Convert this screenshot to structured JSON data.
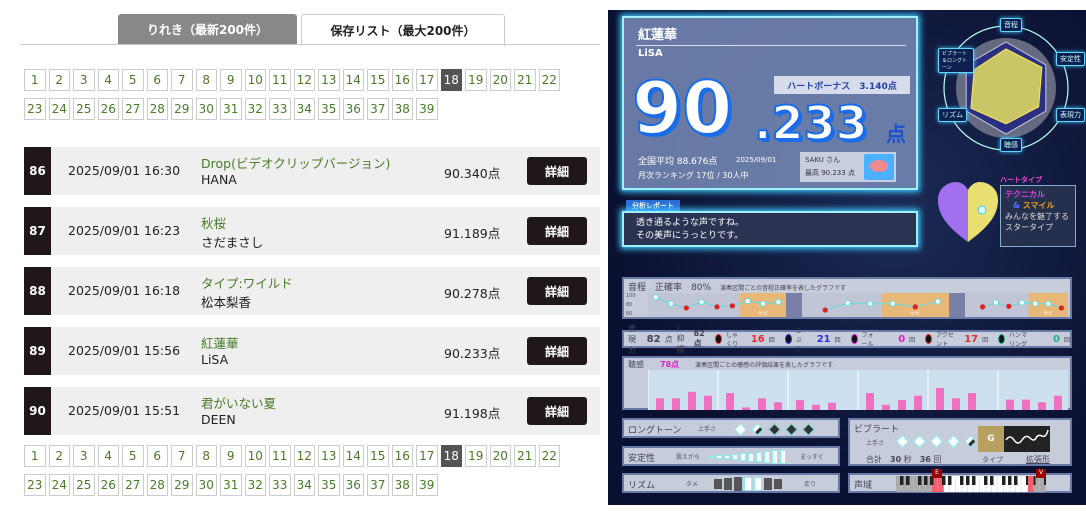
{
  "tabs": [
    {
      "label": "りれき（最新200件）",
      "active": false
    },
    {
      "label": "保存リスト（最大200件）",
      "active": true
    }
  ],
  "pagination": {
    "pages": [
      "1",
      "2",
      "3",
      "4",
      "5",
      "6",
      "7",
      "8",
      "9",
      "10",
      "11",
      "12",
      "13",
      "14",
      "15",
      "16",
      "17",
      "18",
      "19",
      "20",
      "21",
      "22",
      "23",
      "24",
      "25",
      "26",
      "27",
      "28",
      "29",
      "30",
      "31",
      "32",
      "33",
      "34",
      "35",
      "36",
      "37",
      "38",
      "39"
    ],
    "current": "18"
  },
  "rows": [
    {
      "num": "86",
      "date": "2025/09/01 16:30",
      "title": "Drop(ビデオクリップバージョン)",
      "artist": "HANA",
      "score": "90.340点",
      "button": "詳細"
    },
    {
      "num": "87",
      "date": "2025/09/01 16:23",
      "title": "秋桜",
      "artist": "さだまさし",
      "score": "91.189点",
      "button": "詳細"
    },
    {
      "num": "88",
      "date": "2025/09/01 16:18",
      "title": "タイプ:ワイルド",
      "artist": "松本梨香",
      "score": "90.278点",
      "button": "詳細"
    },
    {
      "num": "89",
      "date": "2025/09/01 15:56",
      "title": "紅蓮華",
      "artist": "LiSA",
      "score": "90.233点",
      "button": "詳細"
    },
    {
      "num": "90",
      "date": "2025/09/01 15:51",
      "title": "君がいない夏",
      "artist": "DEEN",
      "score": "91.198点",
      "button": "詳細"
    }
  ],
  "result": {
    "song": "紅蓮華",
    "artist": "LiSA",
    "score_int": "90",
    "score_dec": ".233",
    "score_unit": "点",
    "heart_bonus": "ハートボーナス　3.140点",
    "national_avg": "全国平均 88.676点",
    "date": "2025/09/01",
    "monthly_rank": "月次ランキング 17位 / 30人中",
    "user": "SAKU さん",
    "best": "最高 90.233 点",
    "report_label": "分析レポート",
    "report_line1": "透き通るような声ですね。",
    "report_line2": "その美声にうっとりです。",
    "radar": {
      "labels": [
        "音程",
        "安定性",
        "表現力",
        "聴感",
        "リズム",
        "ビブラート＆ロングトーン"
      ],
      "values": [
        0.85,
        0.9,
        0.82,
        0.78,
        0.88,
        0.8
      ],
      "fill": "#e8e060"
    },
    "heart_type_label": "ハートタイプ",
    "heart_type1": "テクニカル",
    "heart_amp": "&",
    "heart_type2": "スマイル",
    "heart_desc1": "みんなを魅了する",
    "heart_desc2": "スタータイプ",
    "pitch": {
      "label": "音程",
      "rate_label": "正確率",
      "rate": "80",
      "rate_unit": "%",
      "desc": "演奏区間ごとの音程正確率を表したグラフです",
      "ticks": [
        "100",
        "80",
        "60"
      ],
      "sabi": "サビ",
      "segments": [
        [
          92,
          80,
          72,
          83,
          74,
          76,
          85,
          80,
          83
        ],
        [
          68,
          81,
          80,
          80,
          74,
          84
        ],
        [
          74,
          82,
          75,
          82,
          80,
          80,
          72
        ]
      ],
      "hit": [
        [
          1,
          1,
          0,
          1,
          0,
          0,
          1,
          1,
          1
        ],
        [
          0,
          1,
          1,
          1,
          0,
          1
        ],
        [
          0,
          1,
          0,
          1,
          1,
          1,
          0
        ]
      ]
    },
    "expression": {
      "label": "表現力",
      "score": "82",
      "unit": "点",
      "yokuyo_label": "/ 抑揚",
      "yokuyo": "82点",
      "items": [
        {
          "name": "しゃくり",
          "count": "16",
          "color": "#e03030"
        },
        {
          "name": "こぶし",
          "count": "21",
          "color": "#3030e0"
        },
        {
          "name": "フォール",
          "count": "0",
          "color": "#e020c0"
        },
        {
          "name": "アクセント",
          "count": "17",
          "color": "#e03030"
        },
        {
          "name": "ハンマリング",
          "count": "0",
          "color": "#20b090"
        }
      ],
      "count_unit": "回"
    },
    "listening": {
      "label": "聴感",
      "score": "78点",
      "desc": "演奏区間ごとの聴感の評価結果を表したグラフです",
      "bars": [
        [
          0.45,
          0.45,
          0.7,
          0.55
        ],
        [
          0.65,
          0.1,
          0.45,
          0.3
        ],
        [
          0.38,
          0.2,
          0.28
        ],
        [
          0.65,
          0.2,
          0.38,
          0.55
        ],
        [
          0.85,
          0.45,
          0.65
        ],
        [
          0.4,
          0.4,
          0.3,
          0.55
        ]
      ]
    },
    "longtone": {
      "label": "ロングトーン",
      "sub": "上手さ",
      "level": 1.5
    },
    "stability": {
      "label": "安定性",
      "left": "震えがち",
      "right": "まっすぐ",
      "level": 10
    },
    "rhythm": {
      "label": "リズム",
      "left": "タメ",
      "right": "走り",
      "position": 0
    },
    "vibrato": {
      "label": "ビブラート",
      "sub": "上手さ",
      "level": 4.5,
      "total_label": "合計",
      "seconds": "30",
      "sec_unit": "秒",
      "times": "36",
      "times_unit": "回",
      "type_label": "タイプ",
      "type": "拡張形",
      "badge": "G"
    },
    "range": {
      "label": "声域",
      "low": "E",
      "high": "V"
    }
  }
}
